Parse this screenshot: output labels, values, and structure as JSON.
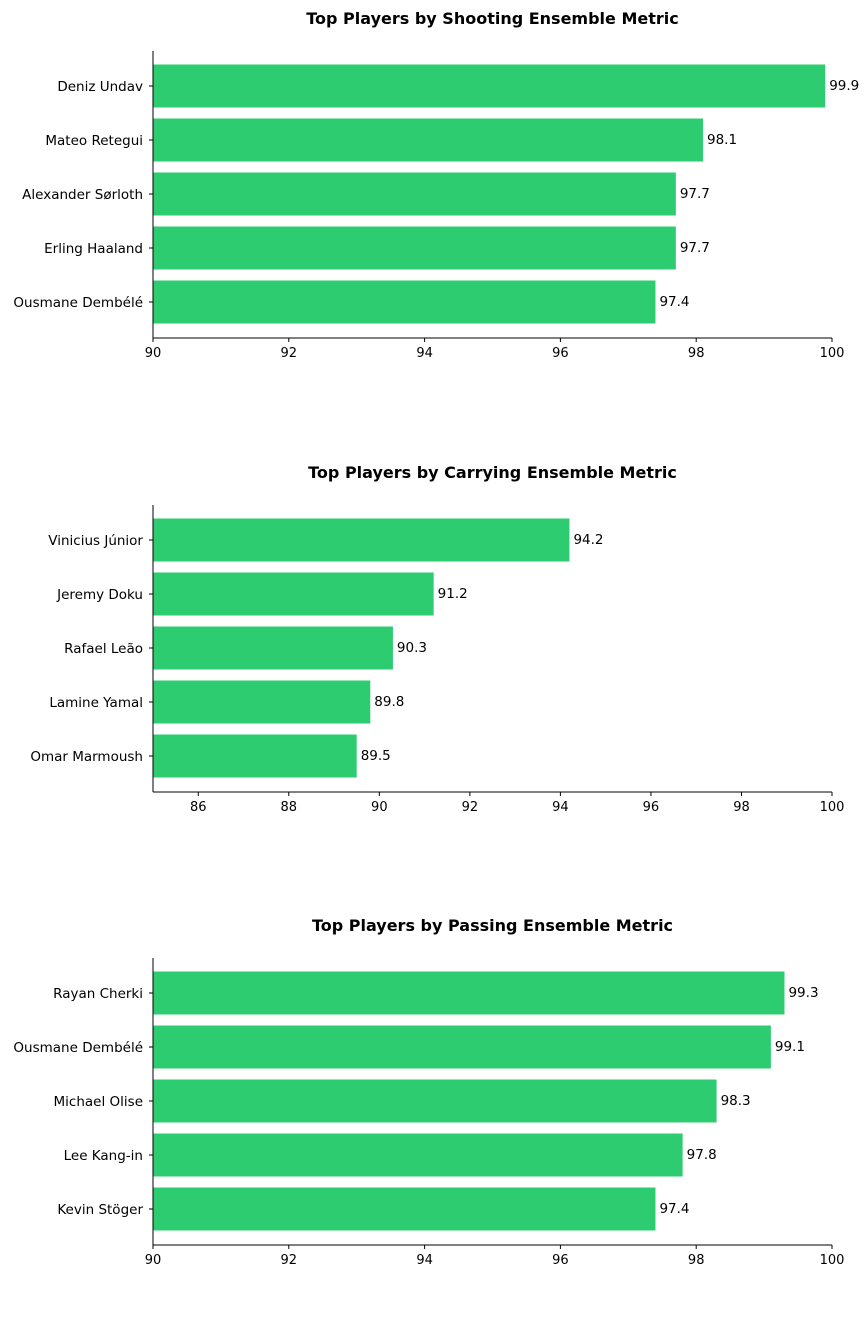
{
  "chart_data": [
    {
      "type": "bar",
      "orientation": "horizontal",
      "title": "Top Players by Shooting Ensemble Metric",
      "xlabel": "",
      "ylabel": "",
      "categories": [
        "Deniz Undav",
        "Mateo Retegui",
        "Alexander Sørloth",
        "Erling Haaland",
        "Ousmane Dembélé"
      ],
      "values": [
        99.9,
        98.1,
        97.7,
        97.7,
        97.4
      ],
      "value_labels": [
        "99.9",
        "98.1",
        "97.7",
        "97.7",
        "97.4"
      ],
      "xlim": [
        90,
        100
      ],
      "xticks": [
        90,
        92,
        94,
        96,
        98,
        100
      ],
      "grid": false,
      "color": "#2ecc71"
    },
    {
      "type": "bar",
      "orientation": "horizontal",
      "title": "Top Players by Carrying Ensemble Metric",
      "xlabel": "",
      "ylabel": "",
      "categories": [
        "Vinicius Júnior",
        "Jeremy Doku",
        "Rafael Leão",
        "Lamine Yamal",
        "Omar Marmoush"
      ],
      "values": [
        94.2,
        91.2,
        90.3,
        89.8,
        89.5
      ],
      "value_labels": [
        "94.2",
        "91.2",
        "90.3",
        "89.8",
        "89.5"
      ],
      "xlim": [
        85,
        100
      ],
      "xticks": [
        86,
        88,
        90,
        92,
        94,
        96,
        98,
        100
      ],
      "grid": false,
      "color": "#2ecc71"
    },
    {
      "type": "bar",
      "orientation": "horizontal",
      "title": "Top Players by Passing Ensemble Metric",
      "xlabel": "",
      "ylabel": "",
      "categories": [
        "Rayan Cherki",
        "Ousmane Dembélé",
        "Michael Olise",
        "Lee Kang-in",
        "Kevin Stöger"
      ],
      "values": [
        99.3,
        99.1,
        98.3,
        97.8,
        97.4
      ],
      "value_labels": [
        "99.3",
        "99.1",
        "98.3",
        "97.8",
        "97.4"
      ],
      "xlim": [
        90,
        100
      ],
      "xticks": [
        90,
        92,
        94,
        96,
        98,
        100
      ],
      "grid": false,
      "color": "#2ecc71"
    }
  ]
}
